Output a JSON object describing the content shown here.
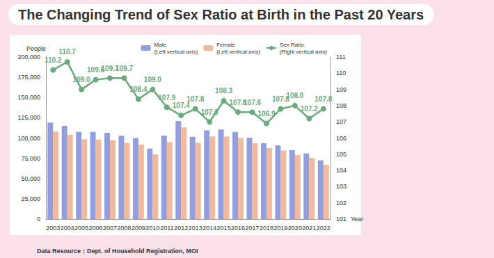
{
  "chart_data": {
    "type": "bar",
    "title": "The Changing Trend of Sex Ratio at Birth in the Past 20 Years",
    "ylabel": "People",
    "xlabel": "Year",
    "source": "Data Resource：Dept. of Household Registration, MOI",
    "categories": [
      "2003",
      "2004",
      "2005",
      "2006",
      "2007",
      "2008",
      "2009",
      "2010",
      "2011",
      "2012",
      "2013",
      "2014",
      "2015",
      "2016",
      "2017",
      "2018",
      "2019",
      "2020",
      "2021",
      "2022"
    ],
    "series": [
      {
        "name": "Male (Left vertical axis)",
        "type": "bar",
        "color": "#939fdc",
        "values": [
          119000,
          115000,
          107500,
          107500,
          106500,
          103000,
          100000,
          87000,
          103000,
          121000,
          101500,
          109500,
          110500,
          107500,
          100500,
          93500,
          91000,
          85000,
          81000,
          72500
        ]
      },
      {
        "name": "Female (Left vertical axis)",
        "type": "bar",
        "color": "#f2b9a1",
        "values": [
          108000,
          104000,
          98500,
          98000,
          97000,
          94000,
          92000,
          80000,
          95000,
          113000,
          94000,
          102000,
          102000,
          100000,
          93500,
          87500,
          84500,
          79000,
          75500,
          67000
        ]
      },
      {
        "name": "Sex Ratio (Right vertical axis)",
        "type": "line",
        "axis": "y2",
        "color": "#6aaa7c",
        "marker": "circle",
        "data_labels": true,
        "values": [
          110.2,
          110.7,
          109.0,
          109.6,
          109.7,
          109.7,
          108.4,
          109.0,
          107.9,
          107.4,
          107.8,
          107.0,
          108.3,
          107.6,
          107.6,
          106.9,
          107.8,
          108.0,
          107.2,
          107.8
        ],
        "value_labels": [
          "110.2",
          "110.7",
          "109.0",
          "109.6",
          "109.7",
          "109.7",
          "108.4",
          "109.0",
          "107.9",
          "107.4",
          "107.8",
          "107.0",
          "108.3",
          "107.6",
          "107.6",
          "106.9",
          "107.8",
          "108.0",
          "107.2",
          "107.8"
        ]
      }
    ],
    "ylim": [
      0,
      200000
    ],
    "yticks": [
      0,
      {
        "value": 25000,
        "label": "25,000"
      },
      {
        "value": 50000,
        "label": "50,000"
      },
      {
        "value": 75000,
        "label": "75,000"
      },
      {
        "value": 100000,
        "label": "100,000"
      },
      {
        "value": 125000,
        "label": "125,000"
      },
      {
        "value": 150000,
        "label": "150,000"
      },
      {
        "value": 175000,
        "label": "175,000"
      },
      {
        "value": 200000,
        "label": "200,000"
      }
    ],
    "y2lim": [
      101,
      111
    ],
    "y2ticks": [
      101,
      102,
      103,
      104,
      105,
      106,
      107,
      108,
      109,
      110,
      111
    ],
    "legend": "top-right",
    "grid": false
  }
}
